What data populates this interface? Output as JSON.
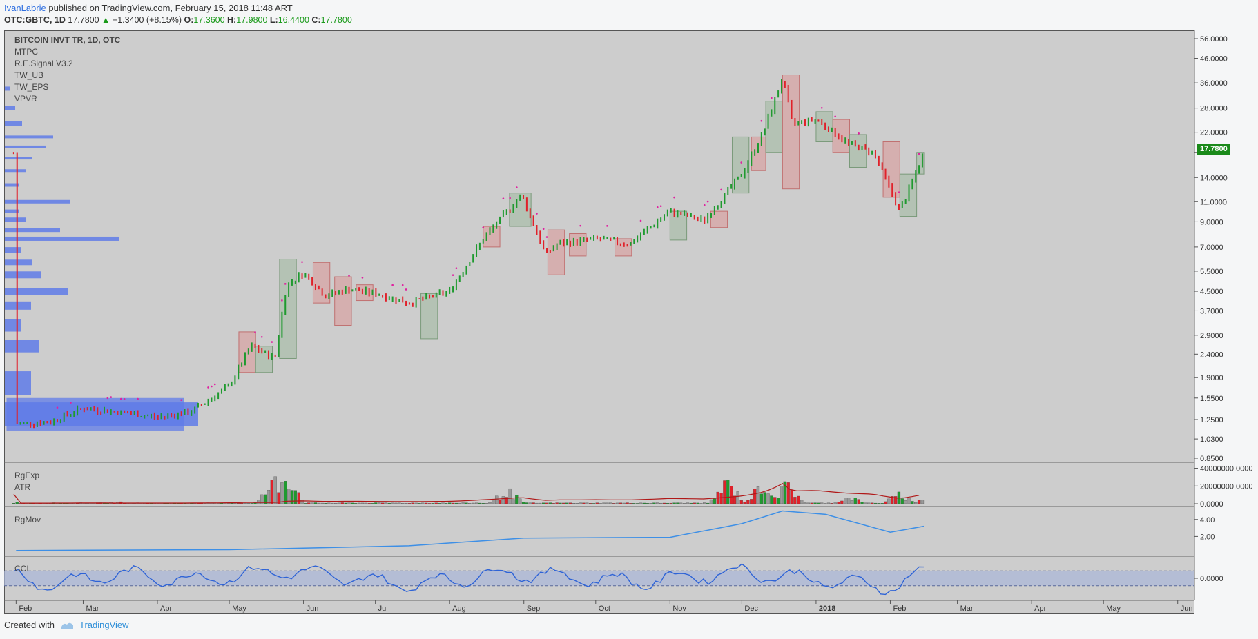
{
  "header": {
    "author": "IvanLabrie",
    "published": "published on TradingView.com, February 15, 2018 11:48 ART",
    "symbol": "OTC:GBTC, 1D",
    "last": "17.7800",
    "change": "+1.3400 (+8.15%)",
    "o_label": "O:",
    "o_val": "17.3600",
    "h_label": "H:",
    "h_val": "17.9800",
    "l_label": "L:",
    "l_val": "16.4400",
    "c_label": "C:",
    "c_val": "17.7800"
  },
  "legend": {
    "main": "BITCOIN INVT TR, 1D, OTC",
    "indicators": [
      "MTPC",
      "R.E.Signal V3.2",
      "TW_UB",
      "TW_EPS",
      "VPVR"
    ],
    "vol_pane": [
      "RgExp",
      "ATR"
    ],
    "mov_pane": "RgMov",
    "cci_pane": "CCI"
  },
  "price_tag": "17.7800",
  "footer": {
    "created": "Created with",
    "brand": "TradingView"
  },
  "colors": {
    "up": "#1f9a2f",
    "down": "#e0212a",
    "profile": "#5f7be8",
    "ma": "#3d8fe6",
    "bg": "#cdcdcd"
  },
  "chart_data": [
    {
      "type": "line",
      "title": "BITCOIN INVT TR, 1D, OTC",
      "scale": "log",
      "y_ticks": [
        "56.0000",
        "46.0000",
        "36.0000",
        "28.0000",
        "22.0000",
        "18.0000",
        "14.0000",
        "11.0000",
        "9.0000",
        "7.0000",
        "5.5000",
        "4.5000",
        "3.7000",
        "2.9000",
        "2.4000",
        "1.9000",
        "1.5500",
        "1.2500",
        "1.0300",
        "0.8500"
      ],
      "x_ticks": [
        "Feb",
        "Mar",
        "Apr",
        "May",
        "Jun",
        "Jul",
        "Aug",
        "Sep",
        "Oct",
        "Nov",
        "Dec",
        "2018",
        "Feb",
        "Mar",
        "Apr",
        "May",
        "Jun"
      ],
      "x": [
        "2017-02-01",
        "2017-02-15",
        "2017-03-01",
        "2017-03-15",
        "2017-04-01",
        "2017-04-15",
        "2017-05-01",
        "2017-05-10",
        "2017-05-20",
        "2017-05-25",
        "2017-06-01",
        "2017-06-10",
        "2017-06-20",
        "2017-07-01",
        "2017-07-15",
        "2017-08-01",
        "2017-08-15",
        "2017-08-31",
        "2017-09-10",
        "2017-09-15",
        "2017-10-01",
        "2017-10-15",
        "2017-11-01",
        "2017-11-15",
        "2017-12-01",
        "2017-12-10",
        "2017-12-18",
        "2017-12-22",
        "2018-01-01",
        "2018-01-15",
        "2018-01-25",
        "2018-02-05",
        "2018-02-15"
      ],
      "close": [
        1.2,
        1.22,
        1.4,
        1.35,
        1.28,
        1.35,
        1.75,
        2.6,
        2.3,
        4.8,
        5.4,
        4.3,
        4.6,
        4.4,
        4.0,
        4.5,
        7.6,
        11.8,
        6.5,
        7.2,
        7.6,
        7.2,
        10.0,
        9.1,
        14.5,
        22.0,
        38.0,
        24.0,
        25.0,
        19.5,
        18.0,
        10.0,
        17.78
      ]
    },
    {
      "type": "bar",
      "title": "RgExp",
      "y_ticks": [
        "40000000.0000",
        "20000000.0000",
        "0.0000"
      ],
      "x": [
        "2017-02-01",
        "2017-03-15",
        "2017-05-20",
        "2017-05-25",
        "2017-08-25",
        "2017-11-25",
        "2017-12-10",
        "2017-12-20",
        "2018-01-15",
        "2018-02-05",
        "2018-02-15"
      ],
      "values": [
        1500000,
        2500000,
        30000000,
        40000000,
        17000000,
        28000000,
        26000000,
        25000000,
        9000000,
        12000000,
        5000000
      ]
    },
    {
      "type": "line",
      "title": "RgMov",
      "y_ticks": [
        "4.00",
        "2.00"
      ],
      "x": [
        "2017-02-01",
        "2017-05-01",
        "2017-07-15",
        "2017-09-01",
        "2017-11-01",
        "2017-12-01",
        "2017-12-18",
        "2018-01-05",
        "2018-02-01",
        "2018-02-15"
      ],
      "values": [
        0.35,
        0.45,
        0.9,
        1.8,
        1.9,
        3.5,
        5.0,
        4.6,
        2.5,
        3.2
      ]
    },
    {
      "type": "line",
      "title": "CCI",
      "y_ticks": [
        "0.0000"
      ],
      "x": [
        "2017-02-01",
        "2017-02-15",
        "2017-03-15",
        "2017-04-15",
        "2017-05-25",
        "2017-07-15",
        "2017-08-25",
        "2017-10-20",
        "2017-11-30",
        "2018-01-20",
        "2018-02-03",
        "2018-02-15"
      ],
      "values": [
        60,
        -180,
        120,
        -40,
        200,
        -180,
        150,
        -100,
        180,
        -170,
        -220,
        140
      ]
    }
  ]
}
